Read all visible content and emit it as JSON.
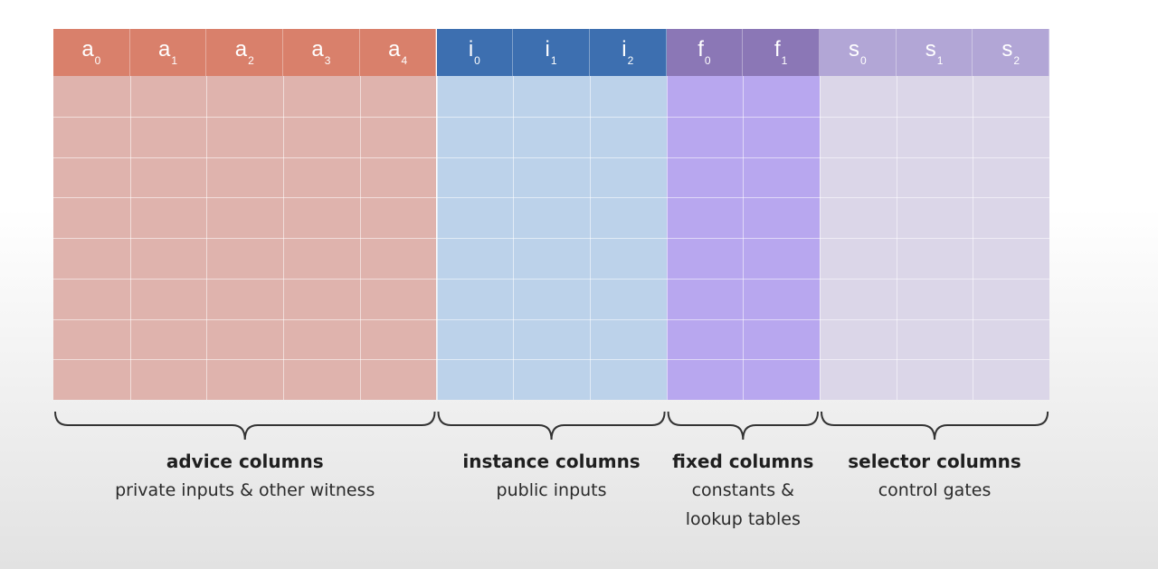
{
  "groups": [
    {
      "id": "advice",
      "header_color": "#d9806b",
      "body_color": "#dfb3ad",
      "columns": [
        {
          "sym": "a",
          "sub": "0"
        },
        {
          "sym": "a",
          "sub": "1"
        },
        {
          "sym": "a",
          "sub": "2"
        },
        {
          "sym": "a",
          "sub": "3"
        },
        {
          "sym": "a",
          "sub": "4"
        }
      ],
      "title": "advice columns",
      "desc": [
        "private inputs & other witness"
      ]
    },
    {
      "id": "instance",
      "header_color": "#3d6fb0",
      "body_color": "#bcd2ea",
      "columns": [
        {
          "sym": "i",
          "sub": "0"
        },
        {
          "sym": "i",
          "sub": "1"
        },
        {
          "sym": "i",
          "sub": "2"
        }
      ],
      "title": "instance columns",
      "desc": [
        "public inputs"
      ]
    },
    {
      "id": "fixed",
      "header_color": "#8b77b6",
      "body_color": "#b8a7ef",
      "columns": [
        {
          "sym": "f",
          "sub": "0"
        },
        {
          "sym": "f",
          "sub": "1"
        }
      ],
      "title": "fixed columns",
      "desc": [
        "constants &",
        "lookup tables"
      ]
    },
    {
      "id": "selector",
      "header_color": "#b2a6d6",
      "body_color": "#dbd6e8",
      "columns": [
        {
          "sym": "s",
          "sub": "0"
        },
        {
          "sym": "s",
          "sub": "1"
        },
        {
          "sym": "s",
          "sub": "2"
        }
      ],
      "title": "selector columns",
      "desc": [
        "control gates"
      ]
    }
  ],
  "body_rows": 8
}
